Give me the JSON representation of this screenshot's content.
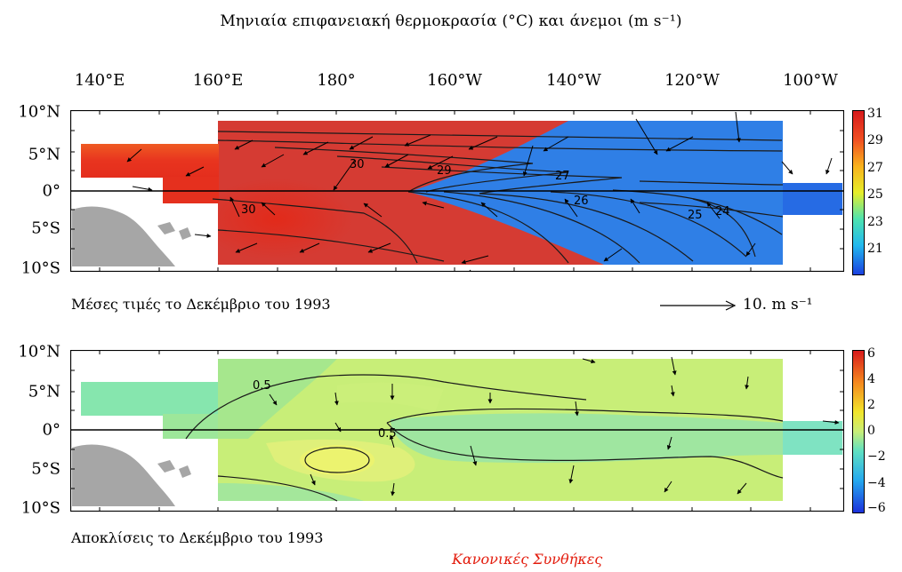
{
  "title": {
    "text": "Μηνιαία επιφανειακή θερμοκρασία (°C) και άνεμοι",
    "unit": "(m s⁻¹)"
  },
  "axes": {
    "lon_labels": [
      "140°E",
      "160°E",
      "180°",
      "160°W",
      "140°W",
      "120°W",
      "100°W"
    ],
    "lat_labels": [
      "10°N",
      "5°N",
      "0°",
      "5°S",
      "10°S"
    ]
  },
  "top_panel": {
    "caption": "Μέσες τιμές το Δεκέμβριο του 1993",
    "contour_labels": [
      "30",
      "29",
      "27",
      "26",
      "25",
      "24",
      "30"
    ],
    "colorbar_ticks": [
      "31",
      "29",
      "27",
      "25",
      "23",
      "21",
      ""
    ]
  },
  "reference_vector": {
    "value": "10.",
    "unit": "m s⁻¹"
  },
  "bottom_panel": {
    "caption": "Αποκλίσεις το Δεκέμβριο του 1993",
    "contour_labels": [
      "0.5",
      "0.5"
    ],
    "colorbar_ticks": [
      "6",
      "4",
      "2",
      "0",
      "−2",
      "−4",
      "−6"
    ]
  },
  "footer": {
    "link_label": "Κανονικές Συνθήκες",
    "link_color": "#e31b0c"
  },
  "colors": {
    "warm": "#e5321f",
    "cold": "#2f7fe6",
    "land": "#a6a6a6",
    "anomaly_neutral": "#c8ee78"
  }
}
